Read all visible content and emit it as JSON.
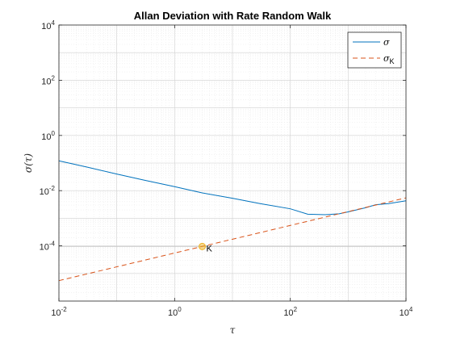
{
  "chart_data": {
    "type": "line",
    "title": "Allan Deviation with Rate Random Walk",
    "xlabel": "τ",
    "ylabel": "σ(τ)",
    "xscale": "log",
    "yscale": "log",
    "xlim": [
      0.01,
      10000
    ],
    "ylim": [
      1e-06,
      10000
    ],
    "grid": "on (major and minor)",
    "legend_position": "top-right",
    "x_ticks": [
      {
        "base": "10",
        "exp": "-2"
      },
      {
        "base": "10",
        "exp": "0"
      },
      {
        "base": "10",
        "exp": "2"
      },
      {
        "base": "10",
        "exp": "4"
      }
    ],
    "y_ticks": [
      {
        "base": "10",
        "exp": "-4",
        "value": 0.0001
      },
      {
        "base": "10",
        "exp": "-2",
        "value": 0.01
      },
      {
        "base": "10",
        "exp": "0",
        "value": 1
      },
      {
        "base": "10",
        "exp": "2",
        "value": 100
      },
      {
        "base": "10",
        "exp": "4",
        "value": 10000
      }
    ],
    "series": [
      {
        "name": "σ",
        "legend_main": "σ",
        "legend_sub": "",
        "style": "solid",
        "color": "#0072BD",
        "x": [
          0.01,
          0.03,
          0.1,
          0.3,
          1,
          3,
          10,
          30,
          100,
          200,
          400,
          700,
          1000,
          2000,
          3000,
          5000,
          10000
        ],
        "y": [
          0.12,
          0.072,
          0.04,
          0.024,
          0.014,
          0.0083,
          0.0053,
          0.0034,
          0.0022,
          0.0014,
          0.00135,
          0.00145,
          0.0017,
          0.0024,
          0.0031,
          0.0034,
          0.0043
        ]
      },
      {
        "name": "σK",
        "legend_main": "σ",
        "legend_sub": "K",
        "style": "dashed",
        "color": "#D95319",
        "x": [
          0.01,
          10000
        ],
        "y": [
          5.5e-06,
          0.0055
        ]
      }
    ],
    "annotations": [
      {
        "label": "K",
        "x": 3,
        "y": 9.49e-05,
        "marker_color": "#EDB120"
      }
    ]
  }
}
